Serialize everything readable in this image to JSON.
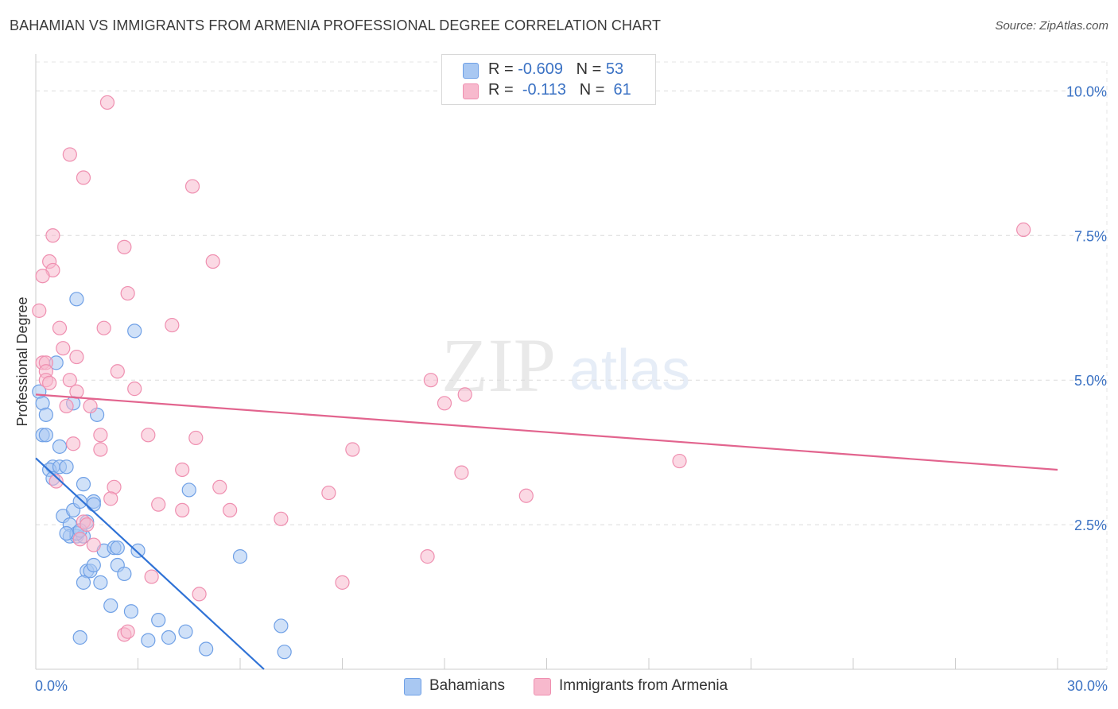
{
  "header": {
    "title": "BAHAMIAN VS IMMIGRANTS FROM ARMENIA PROFESSIONAL DEGREE CORRELATION CHART",
    "source": "Source: ZipAtlas.com"
  },
  "watermark": {
    "zip": "ZIP",
    "atlas": "atlas"
  },
  "legend": {
    "rows": [
      {
        "r_label": "R =",
        "r_value": "-0.609",
        "n_label": "N =",
        "n_value": "53",
        "color": "#a9c8f2"
      },
      {
        "r_label": "R =",
        "r_value": "-0.113",
        "n_label": "N =",
        "n_value": "61",
        "color": "#f7b9cd"
      }
    ]
  },
  "bottom_legend": {
    "items": [
      {
        "label": "Bahamians",
        "color": "#a9c8f2"
      },
      {
        "label": "Immigrants from Armenia",
        "color": "#f7b9cd"
      }
    ]
  },
  "chart_data": {
    "type": "scatter",
    "title": "BAHAMIAN VS IMMIGRANTS FROM ARMENIA PROFESSIONAL DEGREE CORRELATION CHART",
    "xlabel": "",
    "ylabel": "Professional Degree",
    "xlim": [
      0,
      30
    ],
    "ylim": [
      0,
      10.5
    ],
    "x_tick_labels": [
      "0.0%",
      "30.0%"
    ],
    "y_ticks": [
      2.5,
      5.0,
      7.5,
      10.0
    ],
    "y_tick_labels": [
      "2.5%",
      "5.0%",
      "7.5%",
      "10.0%"
    ],
    "grid": true,
    "legend_position": "top-center",
    "series": [
      {
        "name": "Bahamians",
        "color": "#6fa0e6",
        "fill": "#a9c8f2",
        "line_color": "#2f72d6",
        "trend": {
          "x": [
            0.0,
            6.7
          ],
          "y": [
            3.65,
            0.0
          ]
        },
        "points": [
          [
            0.1,
            4.8
          ],
          [
            0.2,
            4.6
          ],
          [
            0.3,
            4.4
          ],
          [
            0.2,
            4.05
          ],
          [
            0.3,
            4.05
          ],
          [
            0.5,
            3.5
          ],
          [
            0.4,
            3.45
          ],
          [
            0.5,
            3.3
          ],
          [
            0.7,
            3.5
          ],
          [
            0.9,
            3.5
          ],
          [
            0.6,
            5.3
          ],
          [
            0.7,
            3.85
          ],
          [
            1.1,
            4.6
          ],
          [
            1.2,
            6.4
          ],
          [
            1.8,
            4.4
          ],
          [
            2.9,
            5.85
          ],
          [
            0.8,
            2.65
          ],
          [
            1.1,
            2.75
          ],
          [
            1.3,
            2.9
          ],
          [
            1.4,
            3.2
          ],
          [
            1.7,
            2.9
          ],
          [
            1.0,
            2.5
          ],
          [
            1.0,
            2.3
          ],
          [
            1.2,
            2.3
          ],
          [
            1.4,
            2.3
          ],
          [
            1.5,
            2.55
          ],
          [
            1.7,
            2.85
          ],
          [
            2.0,
            2.05
          ],
          [
            2.3,
            2.1
          ],
          [
            2.4,
            2.1
          ],
          [
            3.0,
            2.05
          ],
          [
            1.5,
            1.7
          ],
          [
            1.6,
            1.7
          ],
          [
            1.7,
            1.8
          ],
          [
            1.4,
            1.5
          ],
          [
            1.9,
            1.5
          ],
          [
            2.4,
            1.8
          ],
          [
            2.6,
            1.65
          ],
          [
            2.2,
            1.1
          ],
          [
            2.8,
            1.0
          ],
          [
            3.6,
            0.85
          ],
          [
            1.3,
            0.55
          ],
          [
            3.3,
            0.5
          ],
          [
            3.9,
            0.55
          ],
          [
            4.4,
            0.65
          ],
          [
            5.0,
            0.35
          ],
          [
            4.5,
            3.1
          ],
          [
            6.0,
            1.95
          ],
          [
            7.2,
            0.75
          ],
          [
            7.3,
            0.3
          ],
          [
            1.2,
            2.35
          ],
          [
            0.9,
            2.35
          ],
          [
            1.3,
            2.4
          ]
        ]
      },
      {
        "name": "Immigrants from Armenia",
        "color": "#ef8fb0",
        "fill": "#f7b9cd",
        "line_color": "#e2648e",
        "trend": {
          "x": [
            0.0,
            30.0
          ],
          "y": [
            4.75,
            3.45
          ]
        },
        "points": [
          [
            2.1,
            9.8
          ],
          [
            1.0,
            8.9
          ],
          [
            1.4,
            8.5
          ],
          [
            4.6,
            8.35
          ],
          [
            0.5,
            7.5
          ],
          [
            2.6,
            7.3
          ],
          [
            5.2,
            7.05
          ],
          [
            0.4,
            7.05
          ],
          [
            0.5,
            6.9
          ],
          [
            0.2,
            6.8
          ],
          [
            2.7,
            6.5
          ],
          [
            0.1,
            6.2
          ],
          [
            0.7,
            5.9
          ],
          [
            2.0,
            5.9
          ],
          [
            4.0,
            5.95
          ],
          [
            0.8,
            5.55
          ],
          [
            1.2,
            5.4
          ],
          [
            0.2,
            5.3
          ],
          [
            0.3,
            5.3
          ],
          [
            0.3,
            5.15
          ],
          [
            2.4,
            5.15
          ],
          [
            0.3,
            5.0
          ],
          [
            0.4,
            4.95
          ],
          [
            1.0,
            5.0
          ],
          [
            1.2,
            4.8
          ],
          [
            2.9,
            4.85
          ],
          [
            0.9,
            4.55
          ],
          [
            1.6,
            4.55
          ],
          [
            11.6,
            5.0
          ],
          [
            12.0,
            4.6
          ],
          [
            12.6,
            4.75
          ],
          [
            29.0,
            7.6
          ],
          [
            1.1,
            3.9
          ],
          [
            1.9,
            4.05
          ],
          [
            3.3,
            4.05
          ],
          [
            4.7,
            4.0
          ],
          [
            1.9,
            3.8
          ],
          [
            9.3,
            3.8
          ],
          [
            0.6,
            3.25
          ],
          [
            4.3,
            3.45
          ],
          [
            12.5,
            3.4
          ],
          [
            18.9,
            3.6
          ],
          [
            2.3,
            3.15
          ],
          [
            5.4,
            3.15
          ],
          [
            8.6,
            3.05
          ],
          [
            14.4,
            3.0
          ],
          [
            2.2,
            2.95
          ],
          [
            3.6,
            2.85
          ],
          [
            4.3,
            2.75
          ],
          [
            5.7,
            2.75
          ],
          [
            7.2,
            2.6
          ],
          [
            1.4,
            2.55
          ],
          [
            1.5,
            2.5
          ],
          [
            1.3,
            2.25
          ],
          [
            1.7,
            2.15
          ],
          [
            11.5,
            1.95
          ],
          [
            3.4,
            1.6
          ],
          [
            9.0,
            1.5
          ],
          [
            4.8,
            1.3
          ],
          [
            2.6,
            0.6
          ],
          [
            2.7,
            0.65
          ]
        ]
      }
    ]
  }
}
